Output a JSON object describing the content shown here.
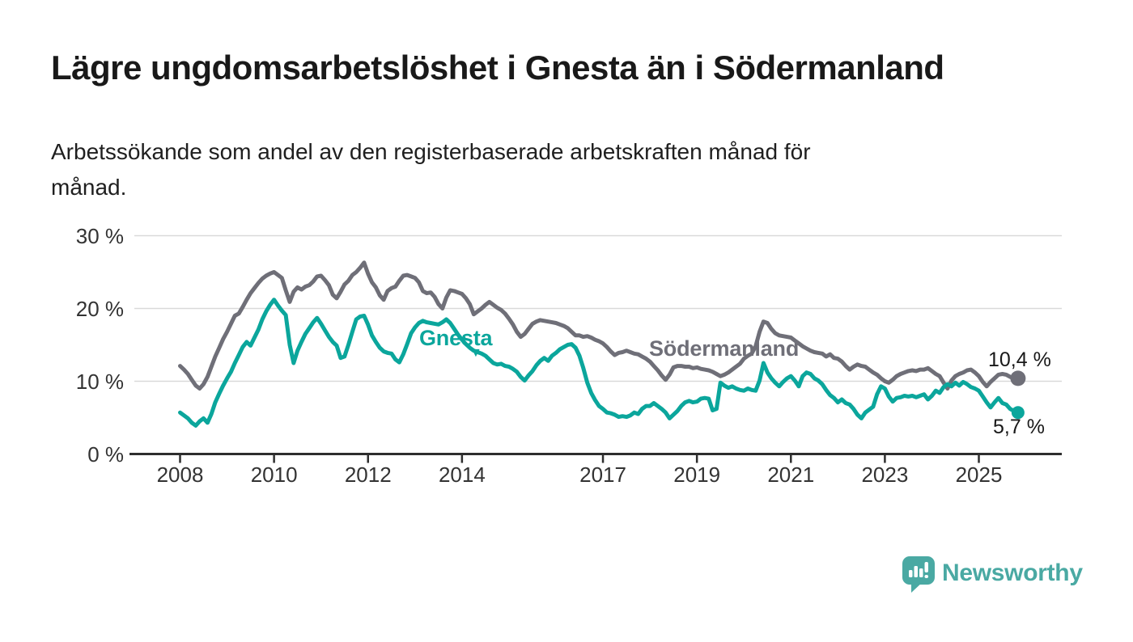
{
  "title": "Lägre ungdomsarbetslöshet i Gnesta än i Södermanland",
  "subtitle": {
    "line1": "Arbetssökande som andel av den registerbaserade arbetskraften månad för",
    "line2": "månad."
  },
  "annotations": {
    "gnesta_label": "Gnesta",
    "gnesta_arrow": "▼",
    "sodermanland_label": "Södermanland",
    "sodermanland_end_value": "10,4 %",
    "gnesta_end_value": "5,7 %"
  },
  "footer": {
    "brand": "Newsworthy"
  },
  "colors": {
    "gnesta": "#0ba69c",
    "sodermanland": "#6f6f78",
    "grid": "#d9d9d9",
    "axis": "#2e2e2e",
    "brand_teal": "#4aa9a3"
  },
  "chart_data": {
    "type": "line",
    "title": "Lägre ungdomsarbetslöshet i Gnesta än i Södermanland",
    "subtitle": "Arbetssökande som andel av den registerbaserade arbetskraften månad för månad.",
    "unit": "percent",
    "frequency": "monthly",
    "x_start": "2008-01",
    "x_end": "2025-11",
    "ylim": [
      0,
      30
    ],
    "grid": true,
    "legend_position": "inline-labels",
    "y_grid_values": [
      30,
      20,
      10,
      0
    ],
    "y_tick_labels": [
      "30 %",
      "20 %",
      "10 %",
      "0 %"
    ],
    "x_tick_years": [
      2008,
      2010,
      2012,
      2014,
      2017,
      2019,
      2021,
      2023,
      2025
    ],
    "x_tick_labels": [
      "2008",
      "2010",
      "2012",
      "2014",
      "2017",
      "2019",
      "2021",
      "2023",
      "2025"
    ],
    "grid_color": "#d9d9d9",
    "axis_color": "#2e2e2e",
    "series": [
      {
        "id": "sodermanland",
        "name": "Södermanland",
        "color": "#6f6f78",
        "end_dot_r": 9.5,
        "end_label": "10,4 %",
        "last_value": 10.4,
        "values": [
          12.1,
          11.6,
          11.0,
          10.2,
          9.4,
          9.0,
          9.6,
          10.6,
          12.0,
          13.4,
          14.6,
          15.8,
          16.8,
          17.9,
          19.0,
          19.3,
          20.2,
          21.2,
          22.1,
          22.8,
          23.5,
          24.1,
          24.5,
          24.8,
          25.0,
          24.6,
          24.2,
          22.5,
          20.9,
          22.3,
          22.9,
          22.6,
          23.0,
          23.2,
          23.7,
          24.4,
          24.5,
          23.9,
          23.2,
          21.9,
          21.4,
          22.3,
          23.3,
          23.8,
          24.6,
          25.0,
          25.6,
          26.3,
          24.8,
          23.6,
          22.9,
          21.8,
          21.2,
          22.4,
          22.8,
          23.0,
          23.8,
          24.5,
          24.6,
          24.4,
          24.2,
          23.6,
          22.4,
          22.1,
          22.2,
          21.6,
          20.6,
          20.0,
          21.5,
          22.5,
          22.4,
          22.2,
          22.0,
          21.4,
          20.6,
          19.2,
          19.6,
          20.0,
          20.5,
          20.9,
          20.5,
          20.1,
          19.8,
          19.3,
          18.6,
          17.8,
          16.8,
          16.1,
          16.5,
          17.2,
          17.9,
          18.2,
          18.4,
          18.3,
          18.2,
          18.1,
          18.0,
          17.8,
          17.6,
          17.3,
          16.8,
          16.3,
          16.3,
          16.1,
          16.2,
          16.0,
          15.7,
          15.5,
          15.2,
          14.7,
          14.1,
          13.6,
          13.9,
          14.0,
          14.2,
          14.0,
          13.8,
          13.7,
          13.4,
          13.1,
          12.7,
          12.1,
          11.5,
          10.8,
          10.2,
          10.9,
          11.9,
          12.1,
          12.1,
          12.0,
          12.0,
          11.8,
          11.9,
          11.7,
          11.6,
          11.5,
          11.3,
          11.0,
          10.7,
          10.9,
          11.2,
          11.6,
          12.0,
          12.4,
          13.1,
          13.5,
          13.8,
          14.8,
          16.8,
          18.2,
          18.0,
          17.2,
          16.6,
          16.3,
          16.2,
          16.1,
          16.0,
          15.6,
          15.2,
          14.8,
          14.5,
          14.2,
          14.0,
          13.9,
          13.8,
          13.4,
          13.7,
          13.2,
          13.1,
          12.7,
          12.1,
          11.6,
          12.0,
          12.3,
          12.1,
          12.0,
          11.6,
          11.2,
          10.9,
          10.4,
          10.0,
          9.8,
          10.2,
          10.7,
          11.0,
          11.2,
          11.4,
          11.5,
          11.4,
          11.6,
          11.6,
          11.8,
          11.4,
          11.0,
          10.7,
          9.8,
          9.0,
          10.1,
          10.7,
          11.0,
          11.2,
          11.5,
          11.6,
          11.2,
          10.7,
          9.9,
          9.3,
          9.9,
          10.4,
          10.9,
          11.0,
          10.9,
          10.6,
          10.4,
          10.4
        ]
      },
      {
        "id": "gnesta",
        "name": "Gnesta",
        "color": "#0ba69c",
        "end_dot_r": 8,
        "end_label": "5,7 %",
        "last_value": 5.7,
        "values": [
          5.7,
          5.3,
          4.9,
          4.3,
          3.9,
          4.5,
          4.9,
          4.3,
          5.5,
          7.1,
          8.3,
          9.4,
          10.4,
          11.3,
          12.5,
          13.6,
          14.7,
          15.4,
          14.9,
          16.0,
          17.1,
          18.5,
          19.6,
          20.5,
          21.2,
          20.4,
          19.7,
          19.1,
          15.0,
          12.5,
          14.2,
          15.4,
          16.5,
          17.3,
          18.1,
          18.7,
          17.9,
          17.0,
          16.1,
          15.4,
          14.9,
          13.2,
          13.4,
          15.0,
          16.8,
          18.5,
          18.9,
          19.0,
          17.8,
          16.3,
          15.4,
          14.6,
          14.1,
          13.9,
          13.8,
          13.0,
          12.6,
          13.7,
          15.1,
          16.6,
          17.4,
          18.0,
          18.3,
          18.1,
          18.0,
          17.9,
          17.8,
          18.1,
          18.5,
          18.0,
          17.2,
          16.4,
          15.7,
          15.1,
          14.6,
          14.2,
          14.0,
          13.8,
          13.5,
          13.0,
          12.5,
          12.3,
          12.4,
          12.1,
          12.0,
          11.7,
          11.3,
          10.6,
          10.1,
          10.8,
          11.4,
          12.2,
          12.8,
          13.2,
          12.8,
          13.5,
          13.9,
          14.4,
          14.7,
          15.0,
          15.1,
          14.6,
          13.5,
          11.8,
          9.8,
          8.4,
          7.4,
          6.6,
          6.2,
          5.7,
          5.6,
          5.4,
          5.1,
          5.2,
          5.1,
          5.3,
          5.7,
          5.5,
          6.2,
          6.6,
          6.6,
          7.0,
          6.6,
          6.2,
          5.7,
          4.9,
          5.4,
          5.9,
          6.6,
          7.1,
          7.3,
          7.1,
          7.2,
          7.6,
          7.7,
          7.6,
          6.0,
          6.2,
          9.8,
          9.4,
          9.1,
          9.3,
          9.0,
          8.8,
          8.7,
          9.0,
          8.8,
          8.7,
          10.1,
          12.5,
          11.2,
          10.4,
          9.8,
          9.3,
          9.9,
          10.4,
          10.7,
          10.1,
          9.3,
          10.7,
          11.2,
          11.0,
          10.4,
          10.1,
          9.6,
          8.8,
          8.1,
          7.7,
          7.1,
          7.5,
          7.0,
          6.8,
          6.2,
          5.4,
          4.9,
          5.7,
          6.1,
          6.5,
          8.2,
          9.3,
          9.0,
          7.9,
          7.2,
          7.7,
          7.8,
          8.0,
          7.9,
          8.0,
          7.8,
          8.0,
          8.2,
          7.5,
          8.0,
          8.7,
          8.4,
          9.2,
          9.6,
          9.3,
          9.8,
          9.4,
          9.9,
          9.6,
          9.2,
          9.0,
          8.7,
          7.9,
          7.1,
          6.4,
          7.1,
          7.7,
          7.0,
          6.8,
          6.2,
          5.9,
          5.7
        ]
      }
    ]
  }
}
